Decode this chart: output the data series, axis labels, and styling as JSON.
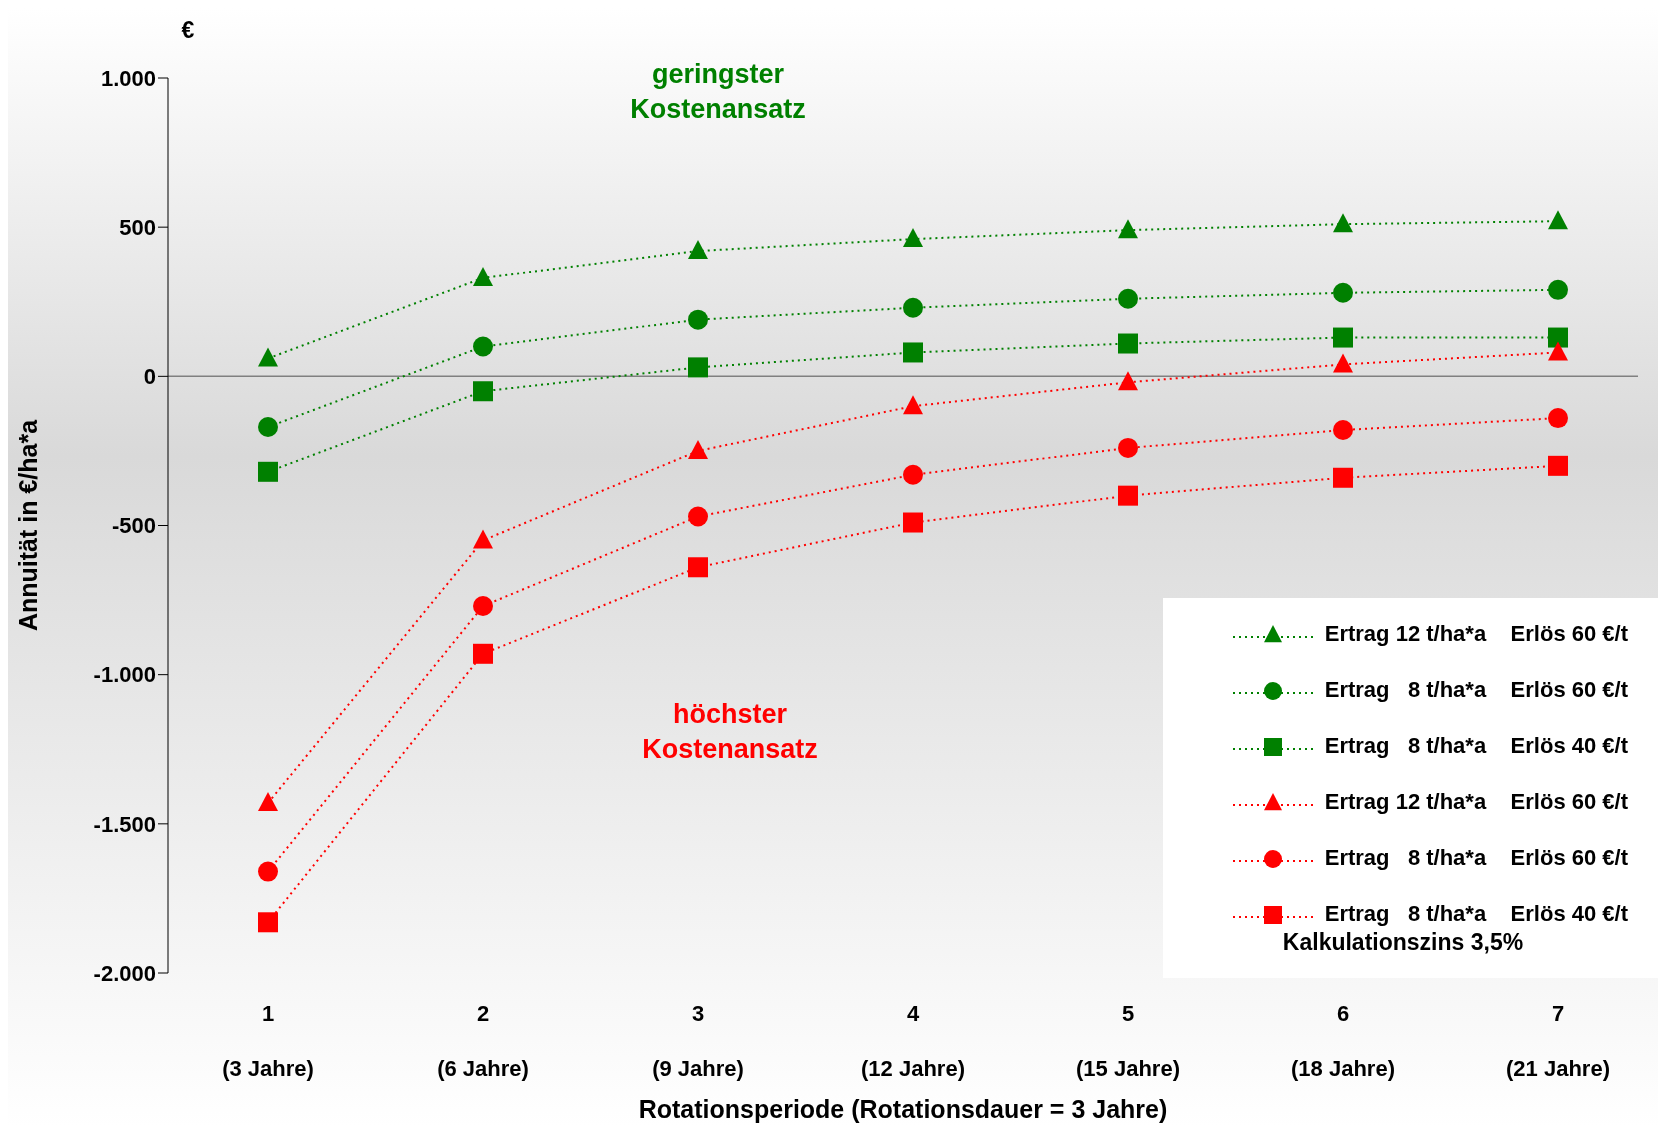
{
  "chart_data": {
    "type": "line",
    "ylabel": "Annuität in €/ha*a",
    "xlabel": "Rotationsperiode (Rotationsdauer = 3 Jahre)",
    "categories": [
      "1\n(3 Jahre)",
      "2\n(6 Jahre)",
      "3\n(9 Jahre)",
      "4\n(12 Jahre)",
      "5\n(15 Jahre)",
      "6\n(18 Jahre)",
      "7\n(21 Jahre)"
    ],
    "series": [
      {
        "name": "Ertrag 12 t/ha*a    Erlös 60 €/t",
        "color": "#008000",
        "marker": "triangle",
        "values": [
          60,
          330,
          420,
          460,
          490,
          510,
          520
        ]
      },
      {
        "name": "Ertrag   8 t/ha*a    Erlös 60 €/t",
        "color": "#008000",
        "marker": "circle",
        "values": [
          -170,
          100,
          190,
          230,
          260,
          280,
          290
        ]
      },
      {
        "name": "Ertrag   8 t/ha*a    Erlös 40 €/t",
        "color": "#008000",
        "marker": "square",
        "values": [
          -320,
          -50,
          30,
          80,
          110,
          130,
          130
        ]
      },
      {
        "name": "Ertrag 12 t/ha*a    Erlös 60 €/t",
        "color": "#ff0000",
        "marker": "triangle",
        "values": [
          -1430,
          -550,
          -250,
          -100,
          -20,
          40,
          80
        ]
      },
      {
        "name": "Ertrag   8 t/ha*a    Erlös 60 €/t",
        "color": "#ff0000",
        "marker": "circle",
        "values": [
          -1660,
          -770,
          -470,
          -330,
          -240,
          -180,
          -140
        ]
      },
      {
        "name": "Ertrag   8 t/ha*a    Erlös 40 €/t",
        "color": "#ff0000",
        "marker": "square",
        "values": [
          -1830,
          -930,
          -640,
          -490,
          -400,
          -340,
          -300
        ]
      }
    ],
    "ylim": [
      -2000,
      1000
    ],
    "yticks": [
      {
        "value": -2000,
        "label": "-2.000"
      },
      {
        "value": -1500,
        "label": "-1.500"
      },
      {
        "value": -1000,
        "label": "-1.000"
      },
      {
        "value": -500,
        "label": "-500"
      },
      0,
      500,
      {
        "value": 1000,
        "label": "1.000"
      }
    ],
    "ref_lines": [
      {
        "axis": "y",
        "value": 0,
        "color": "#808080"
      }
    ],
    "annotations": [
      "€",
      "geringster\nKostenansatz",
      "höchster\nKostenansatz",
      "Kalkulationszins 3,5%"
    ],
    "line_style": "dotted",
    "legend": "bottom right",
    "grid": false
  }
}
